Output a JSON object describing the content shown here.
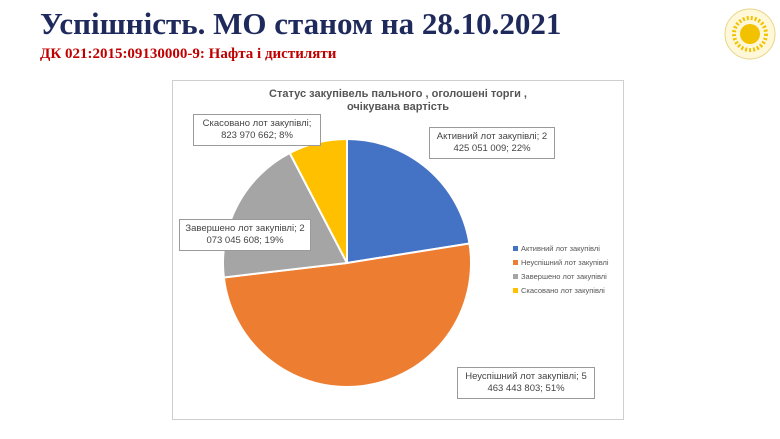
{
  "slide": {
    "title": "Успішність.  МО станом на 28.10.2021",
    "subtitle": "ДК 021:2015:09130000-9: Нафта і дистиляти"
  },
  "chart_data": {
    "type": "pie",
    "title_line1": "Статус  закупівель пального , оголошені торги ,",
    "title_line2": "очікувана вартість",
    "legend_position": "right",
    "slices": [
      {
        "label": "Активний  лот закупівлі",
        "value": 2425051009,
        "percent": 22,
        "color": "#4472c4",
        "callout_line1": "Активний лот закупівлі; 2",
        "callout_line2": "425 051 009; 22%"
      },
      {
        "label": "Неуспішний  лот закупівлі",
        "value": 5463443803,
        "percent": 51,
        "color": "#ed7d31",
        "callout_line1": "Неуспішний лот закупівлі; 5",
        "callout_line2": "463 443 803; 51%"
      },
      {
        "label": "Завершено  лот закупівлі",
        "value": 2073045608,
        "percent": 19,
        "color": "#a5a5a5",
        "callout_line1": "Завершено лот закупівлі; 2",
        "callout_line2": "073 045 608; 19%"
      },
      {
        "label": "Скасовано  лот закупівлі",
        "value": 823970662,
        "percent": 8,
        "color": "#ffc000",
        "callout_line1": "Скасовано лот закупівлі;",
        "callout_line2": "823 970 662; 8%"
      }
    ]
  },
  "logo": {
    "icon": "sun-emblem-icon",
    "color": "#f2c200"
  }
}
